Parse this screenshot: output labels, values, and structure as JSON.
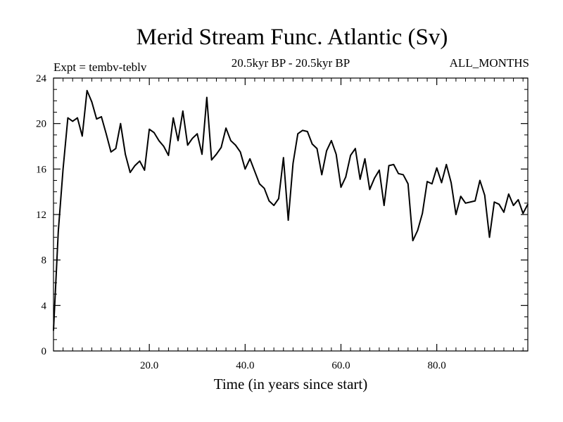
{
  "chart_data": {
    "type": "line",
    "title": "Merid Stream Func. Atlantic (Sv)",
    "subtitle_left": "Expt = tembv-teblv",
    "subtitle_center": "20.5kyr BP - 20.5kyr BP",
    "subtitle_right": "ALL_MONTHS",
    "xlabel": "Time (in years since start)",
    "ylabel": "",
    "xlim": [
      0,
      99
    ],
    "ylim": [
      0,
      24
    ],
    "xticks": [
      20,
      40,
      60,
      80
    ],
    "xtick_labels": [
      "20.0",
      "40.0",
      "60.0",
      "80.0"
    ],
    "yticks": [
      0,
      4,
      8,
      12,
      16,
      20,
      24
    ],
    "ytick_labels": [
      "0",
      "4",
      "8",
      "12",
      "16",
      "20",
      "24"
    ],
    "grid": false,
    "series": [
      {
        "name": "Merid Stream Func. Atlantic",
        "x": [
          0,
          1,
          2,
          3,
          4,
          5,
          6,
          7,
          8,
          9,
          10,
          11,
          12,
          13,
          14,
          15,
          16,
          17,
          18,
          19,
          20,
          21,
          22,
          23,
          24,
          25,
          26,
          27,
          28,
          29,
          30,
          31,
          32,
          33,
          34,
          35,
          36,
          37,
          38,
          39,
          40,
          41,
          42,
          43,
          44,
          45,
          46,
          47,
          48,
          49,
          50,
          51,
          52,
          53,
          54,
          55,
          56,
          57,
          58,
          59,
          60,
          61,
          62,
          63,
          64,
          65,
          66,
          67,
          68,
          69,
          70,
          71,
          72,
          73,
          74,
          75,
          76,
          77,
          78,
          79,
          80,
          81,
          82,
          83,
          84,
          85,
          86,
          87,
          88,
          89,
          90,
          91,
          92,
          93,
          94,
          95,
          96,
          97,
          98,
          99
        ],
        "values": [
          1.8,
          10.5,
          16.0,
          20.5,
          20.2,
          20.5,
          18.9,
          22.9,
          21.9,
          20.4,
          20.6,
          19.1,
          17.5,
          17.8,
          20.0,
          17.3,
          15.7,
          16.3,
          16.7,
          15.9,
          19.5,
          19.2,
          18.5,
          18.0,
          17.2,
          20.5,
          18.5,
          21.1,
          18.1,
          18.7,
          19.1,
          17.3,
          22.3,
          16.8,
          17.3,
          17.9,
          19.6,
          18.5,
          18.1,
          17.5,
          16.0,
          16.9,
          15.8,
          14.7,
          14.3,
          13.2,
          12.8,
          13.4,
          17.0,
          11.5,
          16.5,
          19.1,
          19.4,
          19.3,
          18.2,
          17.8,
          15.5,
          17.6,
          18.5,
          17.3,
          14.4,
          15.3,
          17.2,
          17.8,
          15.1,
          16.9,
          14.2,
          15.2,
          15.9,
          12.8,
          16.3,
          16.4,
          15.6,
          15.5,
          14.7,
          9.7,
          10.6,
          12.1,
          14.9,
          14.7,
          16.1,
          14.8,
          16.4,
          14.8,
          12.0,
          13.6,
          13.0,
          13.1,
          13.2,
          15.0,
          13.7,
          10.0,
          13.1,
          12.9,
          12.2,
          13.8,
          12.8,
          13.3,
          12.1,
          12.9
        ]
      }
    ]
  }
}
